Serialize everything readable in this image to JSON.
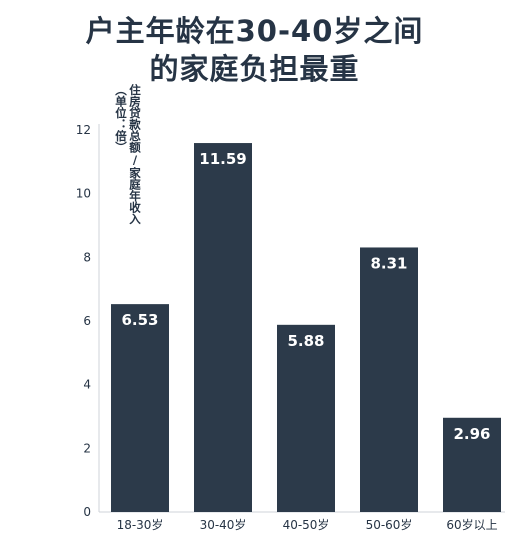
{
  "chart_data": {
    "type": "bar",
    "title_lines": [
      "户主年龄在30-40岁之间",
      "的家庭负担最重"
    ],
    "ylabel_lines": [
      "住房贷款总额/家庭年收入",
      "（单位：倍）"
    ],
    "categories": [
      "18-30岁",
      "30-40岁",
      "40-50岁",
      "50-60岁",
      "60岁以上"
    ],
    "values": [
      6.53,
      11.59,
      5.88,
      8.31,
      2.96
    ],
    "value_labels": [
      "6.53",
      "11.59",
      "5.88",
      "8.31",
      "2.96"
    ],
    "yticks": [
      0,
      2,
      4,
      6,
      8,
      10,
      12
    ],
    "ylim": [
      0,
      12
    ],
    "grid": false,
    "bar_color": "#2c3a4a",
    "label_color": "#ffffff",
    "text_color": "#263445"
  }
}
